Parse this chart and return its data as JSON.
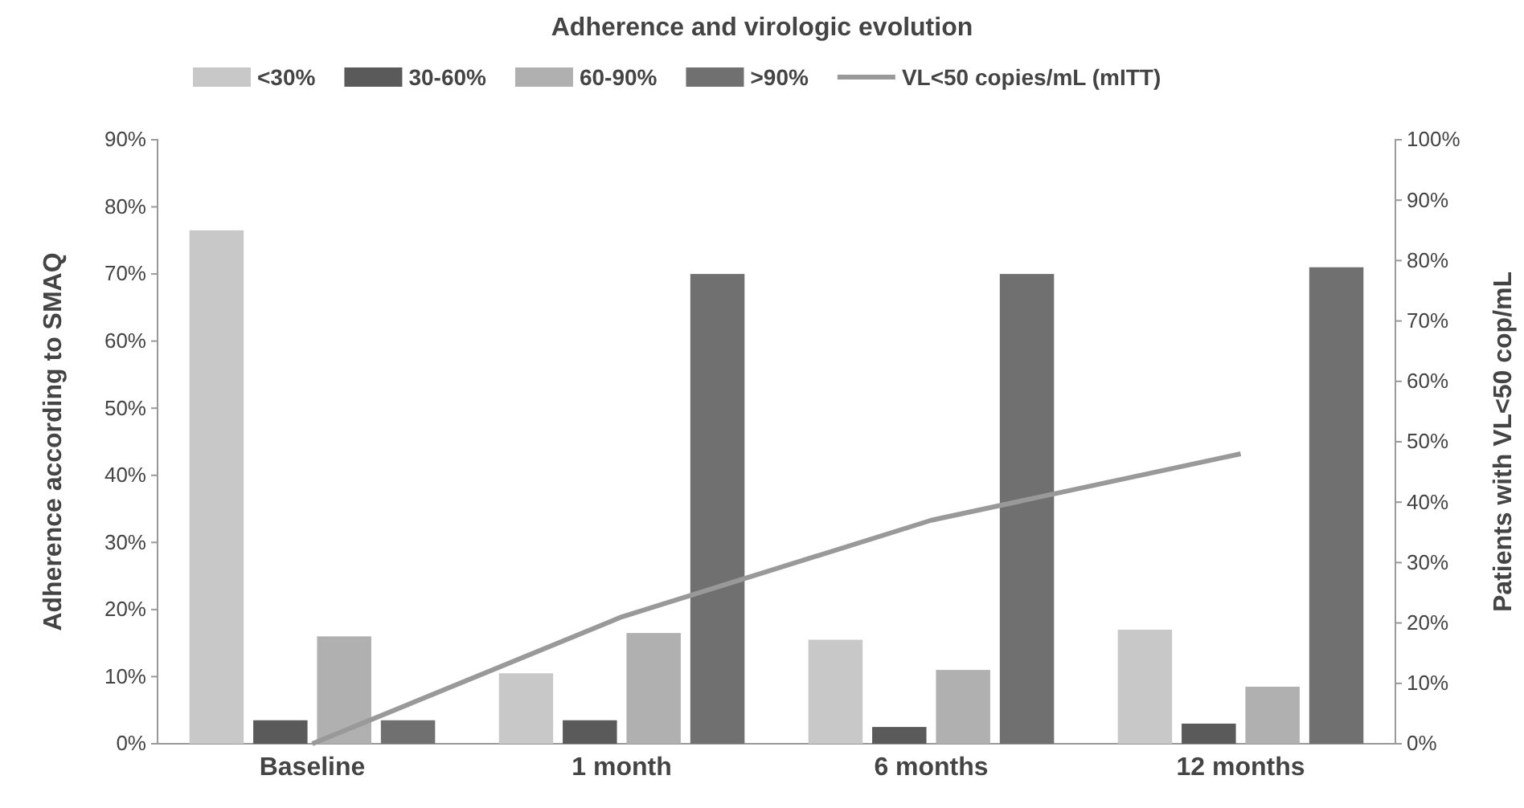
{
  "chart_data": {
    "type": "bar",
    "title": "Adherence and virologic evolution",
    "ylabel": "Adherence according to SMAQ",
    "y2label": "Patients with VL<50 cop/mL",
    "categories": [
      "Baseline",
      "1 month",
      "6 months",
      "12 months"
    ],
    "series": [
      {
        "name": "<30%",
        "color": "#c8c8c8",
        "values": [
          76.5,
          10.5,
          15.5,
          17
        ]
      },
      {
        "name": "30-60%",
        "color": "#5a5a5a",
        "values": [
          3.5,
          3.5,
          2.5,
          3
        ]
      },
      {
        "name": "60-90%",
        "color": "#b0b0b0",
        "values": [
          16,
          16.5,
          11,
          8.5
        ]
      },
      {
        "name": ">90%",
        "color": "#707070",
        "values": [
          3.5,
          70,
          70,
          71
        ]
      },
      {
        "name": "VL<50 copies/mL (mITT)",
        "type": "line",
        "axis": "y2",
        "color": "#999999",
        "values": [
          0,
          21,
          37,
          48
        ],
        "marker": "none"
      }
    ],
    "ylim": [
      0,
      90
    ],
    "yticks": [
      {
        "value": 0,
        "label": "0%"
      },
      {
        "value": 10,
        "label": "10%"
      },
      {
        "value": 20,
        "label": "20%"
      },
      {
        "value": 30,
        "label": "30%"
      },
      {
        "value": 40,
        "label": "40%"
      },
      {
        "value": 50,
        "label": "50%"
      },
      {
        "value": 60,
        "label": "60%"
      },
      {
        "value": 70,
        "label": "70%"
      },
      {
        "value": 80,
        "label": "80%"
      },
      {
        "value": 90,
        "label": "90%"
      }
    ],
    "y2lim": [
      0,
      100
    ],
    "y2ticks": [
      {
        "value": 0,
        "label": "0%"
      },
      {
        "value": 10,
        "label": "10%"
      },
      {
        "value": 20,
        "label": "20%"
      },
      {
        "value": 30,
        "label": "30%"
      },
      {
        "value": 40,
        "label": "40%"
      },
      {
        "value": 50,
        "label": "50%"
      },
      {
        "value": 60,
        "label": "60%"
      },
      {
        "value": 70,
        "label": "70%"
      },
      {
        "value": 80,
        "label": "80%"
      },
      {
        "value": 90,
        "label": "90%"
      },
      {
        "value": 100,
        "label": "100%"
      }
    ],
    "legend": "top",
    "grid": false
  }
}
